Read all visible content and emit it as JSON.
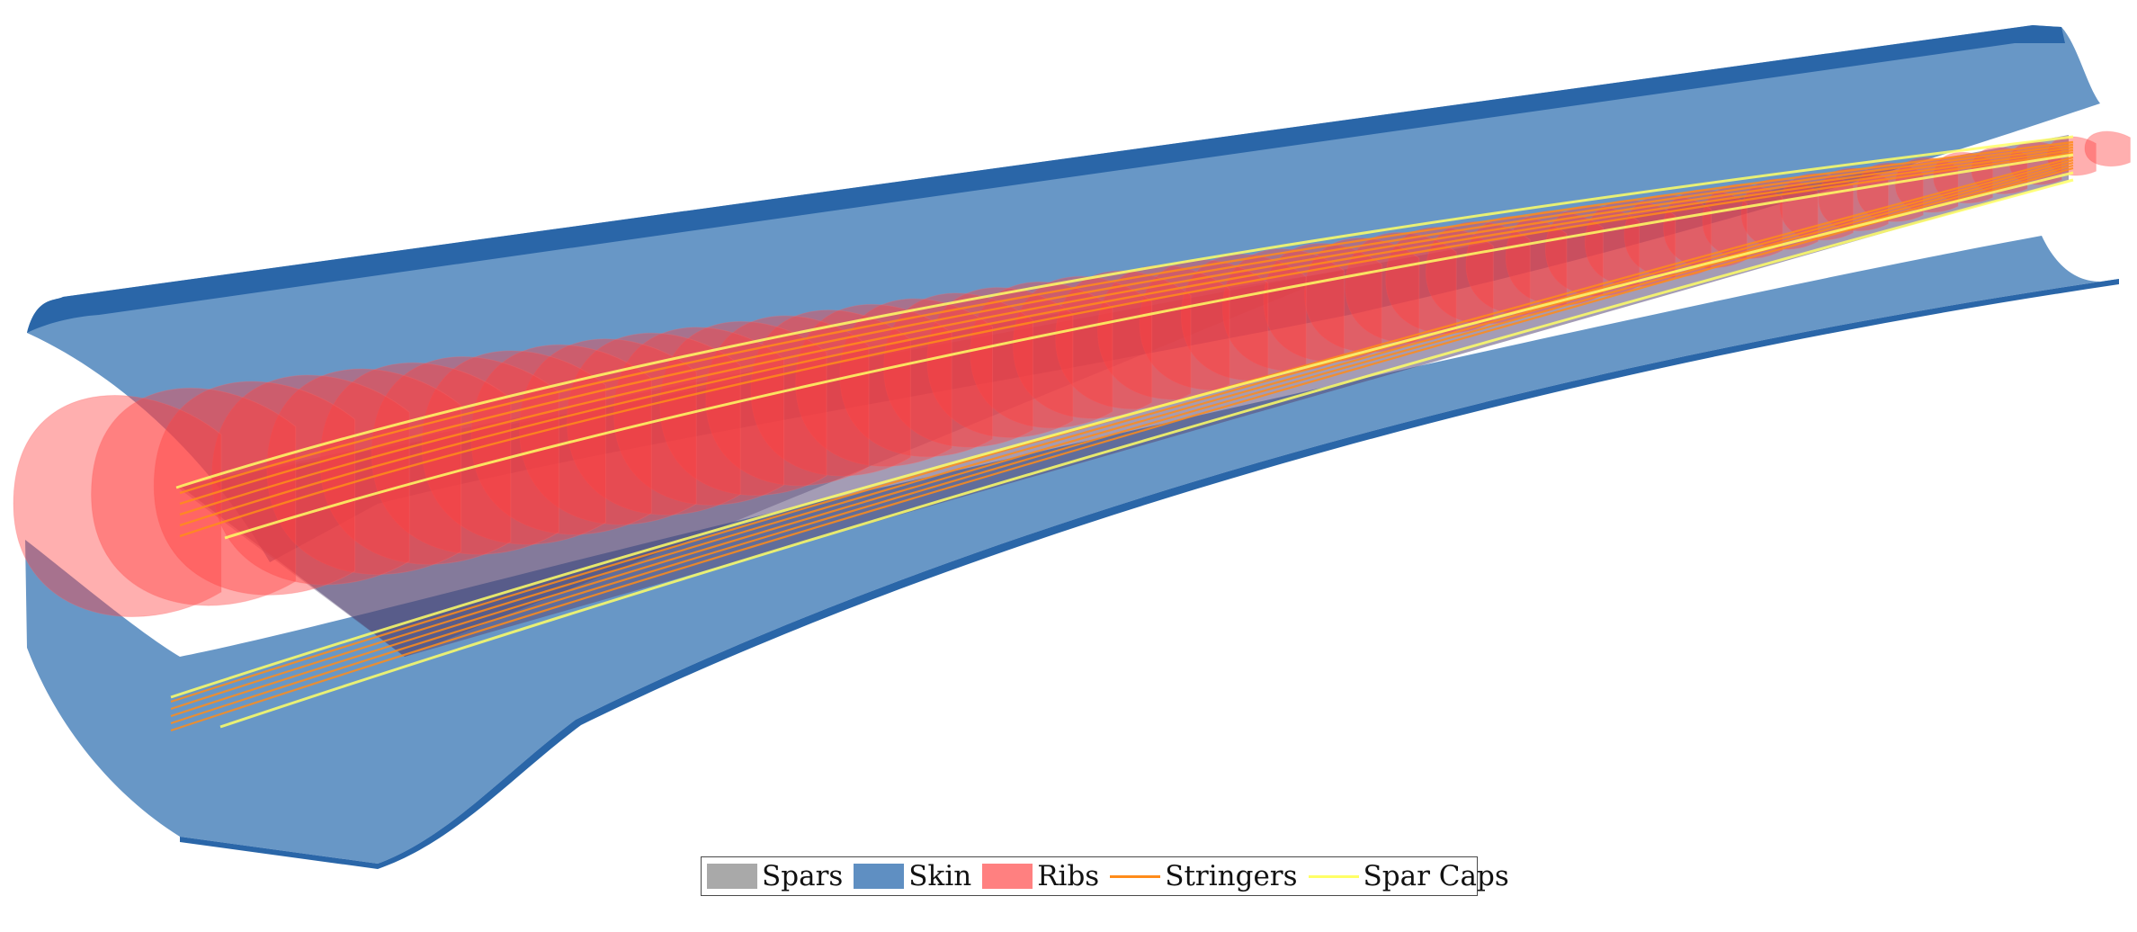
{
  "legend": {
    "entries": [
      {
        "key": "spars",
        "label": "Spars",
        "kind": "patch",
        "color": "#a9a9a9"
      },
      {
        "key": "skin",
        "label": "Skin",
        "kind": "patch",
        "color": "#5f8fc2"
      },
      {
        "key": "ribs",
        "label": "Ribs",
        "kind": "patch",
        "color": "#ff8080"
      },
      {
        "key": "stringers",
        "label": "Stringers",
        "kind": "line",
        "color": "#ff8c1a"
      },
      {
        "key": "spar_caps",
        "label": "Spar Caps",
        "kind": "line",
        "color": "#ffff66"
      }
    ]
  },
  "colors": {
    "skin": "#6595c5",
    "skin_edge": "#2a66a8",
    "ribs": "#ff4040",
    "spars": "#5a4a78",
    "stringers": "#ff8c1a",
    "spar_caps": "#ffff66"
  },
  "rib_count": 48
}
